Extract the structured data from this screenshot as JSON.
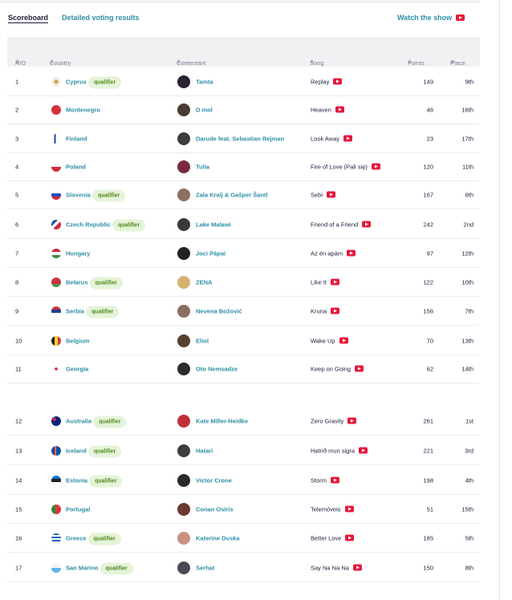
{
  "tabs": [
    {
      "label": "Scoreboard",
      "active": true
    },
    {
      "label": "Detailed voting results",
      "active": false
    }
  ],
  "watch_label": "Watch the show",
  "columns": {
    "ro": "R/O",
    "country": "Country",
    "contestant": "Contestant",
    "song": "Song",
    "points": "Points",
    "place": "Place",
    "sort_icon": "⇕"
  },
  "qualifier_label": "qualifier",
  "colors": {
    "accent": "#2d8fa6",
    "qualifier_bg": "#e5f3d9",
    "youtube": "#e8183b"
  },
  "rows": [
    {
      "ro": "1",
      "country": "Cyprus",
      "qualifier": true,
      "contestant": "Tamta",
      "song": "Replay",
      "points": "149",
      "place": "9th"
    },
    {
      "ro": "2",
      "country": "Montenegro",
      "qualifier": false,
      "contestant": "D mol",
      "song": "Heaven",
      "points": "46",
      "place": "16th"
    },
    {
      "ro": "3",
      "country": "Finland",
      "qualifier": false,
      "contestant": "Darude feat. Sebastian Rejman",
      "song": "Look Away",
      "points": "23",
      "place": "17th"
    },
    {
      "ro": "4",
      "country": "Poland",
      "qualifier": false,
      "contestant": "Tulia",
      "song": "Fire of Love (Pali się)",
      "points": "120",
      "place": "11th"
    },
    {
      "ro": "5",
      "country": "Slovenia",
      "qualifier": true,
      "contestant": "Zala Kralj & Gašper Šantl",
      "song": "Sebi",
      "points": "167",
      "place": "6th"
    },
    {
      "ro": "6",
      "country": "Czech Republic",
      "qualifier": true,
      "contestant": "Lake Malawi",
      "song": "Friend of a Friend",
      "points": "242",
      "place": "2nd"
    },
    {
      "ro": "7",
      "country": "Hungary",
      "qualifier": false,
      "contestant": "Joci Pápai",
      "song": "Az én apám",
      "points": "97",
      "place": "12th"
    },
    {
      "ro": "8",
      "country": "Belarus",
      "qualifier": true,
      "contestant": "ZENA",
      "song": "Like It",
      "points": "122",
      "place": "10th"
    },
    {
      "ro": "9",
      "country": "Serbia",
      "qualifier": true,
      "contestant": "Nevena Božović",
      "song": "Kruna",
      "points": "156",
      "place": "7th"
    },
    {
      "ro": "10",
      "country": "Belgium",
      "qualifier": false,
      "contestant": "Eliot",
      "song": "Wake Up",
      "points": "70",
      "place": "13th"
    },
    {
      "ro": "11",
      "country": "Georgia",
      "qualifier": false,
      "contestant": "Oto Nemsadze",
      "song": "Keep on Going",
      "points": "62",
      "place": "14th"
    },
    {
      "ro": "12",
      "country": "Australia",
      "qualifier": true,
      "contestant": "Kate Miller-Heidke",
      "song": "Zero Gravity",
      "points": "261",
      "place": "1st"
    },
    {
      "ro": "13",
      "country": "Iceland",
      "qualifier": true,
      "contestant": "Hatari",
      "song": "Hatrið mun sigra",
      "points": "221",
      "place": "3rd"
    },
    {
      "ro": "14",
      "country": "Estonia",
      "qualifier": true,
      "contestant": "Victor Crone",
      "song": "Storm",
      "points": "198",
      "place": "4th"
    },
    {
      "ro": "15",
      "country": "Portugal",
      "qualifier": false,
      "contestant": "Conan Osíris",
      "song": "Telemóveis",
      "points": "51",
      "place": "15th"
    },
    {
      "ro": "16",
      "country": "Greece",
      "qualifier": true,
      "contestant": "Katerine Duska",
      "song": "Better Love",
      "points": "185",
      "place": "5th"
    },
    {
      "ro": "17",
      "country": "San Marino",
      "qualifier": true,
      "contestant": "Serhat",
      "song": "Say Na Na Na",
      "points": "150",
      "place": "8th"
    }
  ]
}
